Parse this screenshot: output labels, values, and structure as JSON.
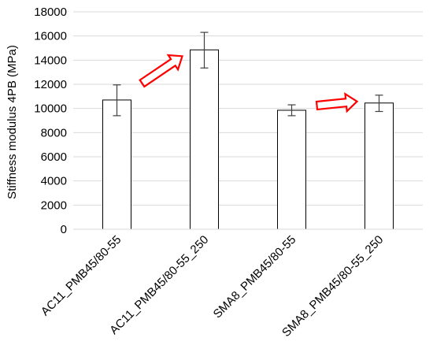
{
  "chart_data": {
    "type": "bar",
    "title": "",
    "xlabel": "",
    "ylabel": "Stiffness modulus 4PB (MPa)",
    "ylim": [
      0,
      18000
    ],
    "yticks": [
      0,
      2000,
      4000,
      6000,
      8000,
      10000,
      12000,
      14000,
      16000,
      18000
    ],
    "grid": true,
    "categories": [
      "AC11_PMB45/80-55",
      "AC11_PMB45/80-55_250",
      "SMA8_PMB45/80-55",
      "SMA8_PMB45/80-55_250"
    ],
    "values": [
      10700,
      14850,
      9850,
      10450
    ],
    "error_low": [
      9400,
      13350,
      9400,
      9750
    ],
    "error_high": [
      11950,
      16300,
      10300,
      11100
    ],
    "annotations": [
      {
        "type": "arrow",
        "from_category": 0,
        "to_category": 1,
        "color": "#ff0000"
      },
      {
        "type": "arrow",
        "from_category": 2,
        "to_category": 3,
        "color": "#ff0000"
      }
    ],
    "colors": {
      "bar_fill": "#ffffff",
      "bar_stroke": "#000000",
      "grid": "#d9d9d9",
      "error_bar": "#404040",
      "arrow": "#ff0000"
    }
  }
}
